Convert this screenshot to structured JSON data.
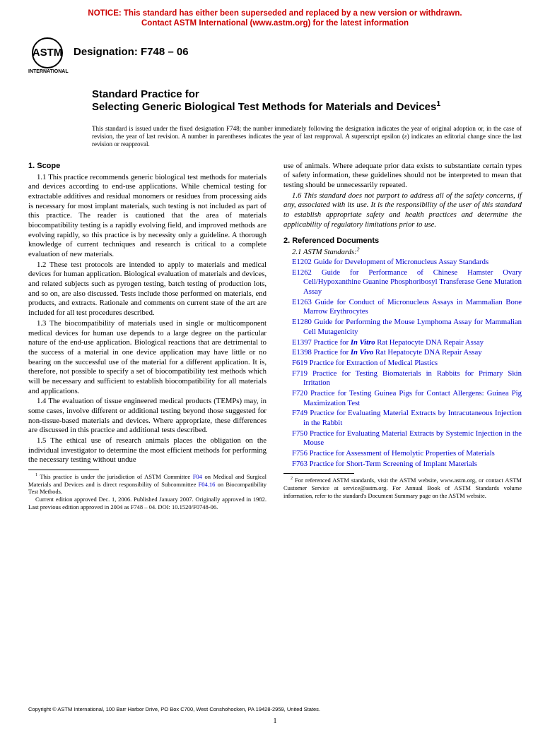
{
  "notice": {
    "line1": "NOTICE: This standard has either been superseded and replaced by a new version or withdrawn.",
    "line2": "Contact ASTM International (www.astm.org) for the latest information"
  },
  "logo": {
    "abbrev": "ASTM",
    "sub": "INTERNATIONAL"
  },
  "designation": "Designation: F748 – 06",
  "title": {
    "pre": "Standard Practice for",
    "main": "Selecting Generic Biological Test Methods for Materials and Devices",
    "sup": "1"
  },
  "issue_note": "This standard is issued under the fixed designation F748; the number immediately following the designation indicates the year of original adoption or, in the case of revision, the year of last revision. A number in parentheses indicates the year of last reapproval. A superscript epsilon (ε) indicates an editorial change since the last revision or reapproval.",
  "s1": {
    "head": "1. Scope",
    "p1": "1.1 This practice recommends generic biological test methods for materials and devices according to end-use applications. While chemical testing for extractable additives and residual monomers or residues from processing aids is necessary for most implant materials, such testing is not included as part of this practice. The reader is cautioned that the area of materials biocompatibility testing is a rapidly evolving field, and improved methods are evolving rapidly, so this practice is by necessity only a guideline. A thorough knowledge of current techniques and research is critical to a complete evaluation of new materials.",
    "p2": "1.2 These test protocols are intended to apply to materials and medical devices for human application. Biological evaluation of materials and devices, and related subjects such as pyrogen testing, batch testing of production lots, and so on, are also discussed. Tests include those performed on materials, end products, and extracts. Rationale and comments on current state of the art are included for all test procedures described.",
    "p3": "1.3 The biocompatibility of materials used in single or multicomponent medical devices for human use depends to a large degree on the particular nature of the end-use application. Biological reactions that are detrimental to the success of a material in one device application may have little or no bearing on the successful use of the material for a different application. It is, therefore, not possible to specify a set of biocompatibility test methods which will be necessary and sufficient to establish biocompatibility for all materials and applications.",
    "p4": "1.4 The evaluation of tissue engineered medical products (TEMPs) may, in some cases, involve different or additional testing beyond those suggested for non-tissue-based materials and devices. Where appropriate, these differences are discussed in this practice and additional tests described.",
    "p5a": "1.5 The ethical use of research animals places the obligation on the individual investigator to determine the most efficient methods for performing the necessary testing without undue",
    "p5b": "use of animals. Where adequate prior data exists to substantiate certain types of safety information, these guidelines should not be interpreted to mean that testing should be unnecessarily repeated.",
    "p6": "1.6 This standard does not purport to address all of the safety concerns, if any, associated with its use. It is the responsibility of the user of this standard to establish appropriate safety and health practices and determine the applicability of regulatory limitations prior to use."
  },
  "s2": {
    "head": "2. Referenced Documents",
    "sub": "2.1 ASTM Standards:",
    "sup": "2",
    "refs": [
      {
        "code": "E1202",
        "title": "Guide for Development of Micronucleus Assay Standards"
      },
      {
        "code": "E1262",
        "title": "Guide for Performance of Chinese Hamster Ovary Cell/Hypoxanthine Guanine Phosphoribosyl Transferase Gene Mutation Assay"
      },
      {
        "code": "E1263",
        "title": "Guide for Conduct of Micronucleus Assays in Mammalian Bone Marrow Erythrocytes"
      },
      {
        "code": "E1280",
        "title": "Guide for Performing the Mouse Lymphoma Assay for Mammalian Cell Mutagenicity"
      },
      {
        "code": "E1397",
        "title_pre": "Practice for ",
        "title_ital": "In Vitro",
        "title_post": " Rat Hepatocyte DNA Repair Assay"
      },
      {
        "code": "E1398",
        "title_pre": "Practice for ",
        "title_ital": "In Vivo",
        "title_post": " Rat Hepatocyte DNA Repair Assay"
      },
      {
        "code": "F619",
        "title": "Practice for Extraction of Medical Plastics"
      },
      {
        "code": "F719",
        "title": "Practice for Testing Biomaterials in Rabbits for Primary Skin Irritation"
      },
      {
        "code": "F720",
        "title": "Practice for Testing Guinea Pigs for Contact Allergens: Guinea Pig Maximization Test"
      },
      {
        "code": "F749",
        "title": "Practice for Evaluating Material Extracts by Intracutaneous Injection in the Rabbit"
      },
      {
        "code": "F750",
        "title": "Practice for Evaluating Material Extracts by Systemic Injection in the Mouse"
      },
      {
        "code": "F756",
        "title": "Practice for Assessment of Hemolytic Properties of Materials"
      },
      {
        "code": "F763",
        "title": "Practice for Short-Term Screening of Implant Materials"
      }
    ]
  },
  "fn1": {
    "p1_a": " This practice is under the jurisdiction of ASTM Committee ",
    "p1_link1": "F04",
    "p1_b": " on Medical and Surgical Materials and Devices and is direct responsibility of Subcommittee ",
    "p1_link2": "F04.16",
    "p1_c": " on Biocompatibility Test Methods.",
    "p2": "Current edition approved Dec. 1, 2006. Published January 2007. Originally approved in 1982. Last previous edition approved in 2004 as F748 – 04. DOI: 10.1520/F0748-06."
  },
  "fn2": " For referenced ASTM standards, visit the ASTM website, www.astm.org, or contact ASTM Customer Service at service@astm.org. For Annual Book of ASTM Standards volume information, refer to the standard's Document Summary page on the ASTM website.",
  "copyright": "Copyright © ASTM International, 100 Barr Harbor Drive, PO Box C700, West Conshohocken, PA 19428-2959, United States.",
  "page": "1"
}
